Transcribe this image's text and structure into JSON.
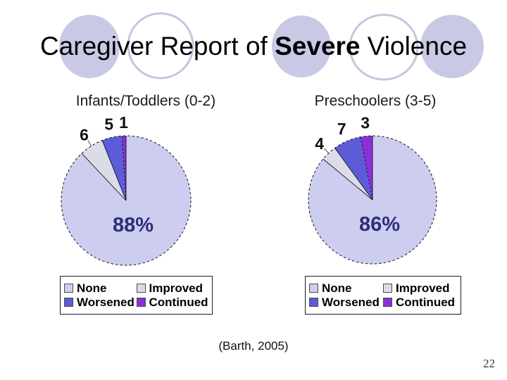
{
  "slide": {
    "title_prefix": "Caregiver Report of ",
    "title_emphasis": "Severe",
    "title_suffix": " Violence",
    "citation": "(Barth, 2005)",
    "page_number": "22"
  },
  "colors": {
    "none": "#CDCDF0",
    "improved": "#DCDCE8",
    "worsened": "#5C5CD8",
    "continued": "#8A30D8",
    "slice_border": "#15151f",
    "percent_label": "#2E2E78",
    "decoration_fill": "#C9C9E6",
    "decoration_outline": "#C5C5DF"
  },
  "chart_data": [
    {
      "type": "pie",
      "title": "Infants/Toddlers (0-2)",
      "categories": [
        "None",
        "Improved",
        "Worsened",
        "Continued"
      ],
      "values": [
        88,
        6,
        5,
        1
      ],
      "unit": "percent",
      "start_angle_deg": 0,
      "direction": "clockwise",
      "center_label": "88%",
      "slice_callouts": [
        "88%",
        "6",
        "5",
        "1"
      ],
      "legend": [
        "None",
        "Improved",
        "Worsened",
        "Continued"
      ],
      "legend_position": "bottom"
    },
    {
      "type": "pie",
      "title": "Preschoolers (3-5)",
      "categories": [
        "None",
        "Improved",
        "Worsened",
        "Continued"
      ],
      "values": [
        86,
        4,
        7,
        3
      ],
      "unit": "percent",
      "start_angle_deg": 0,
      "direction": "clockwise",
      "center_label": "86%",
      "slice_callouts": [
        "86%",
        "4",
        "7",
        "3"
      ],
      "legend": [
        "None",
        "Improved",
        "Worsened",
        "Continued"
      ],
      "legend_position": "bottom"
    }
  ]
}
